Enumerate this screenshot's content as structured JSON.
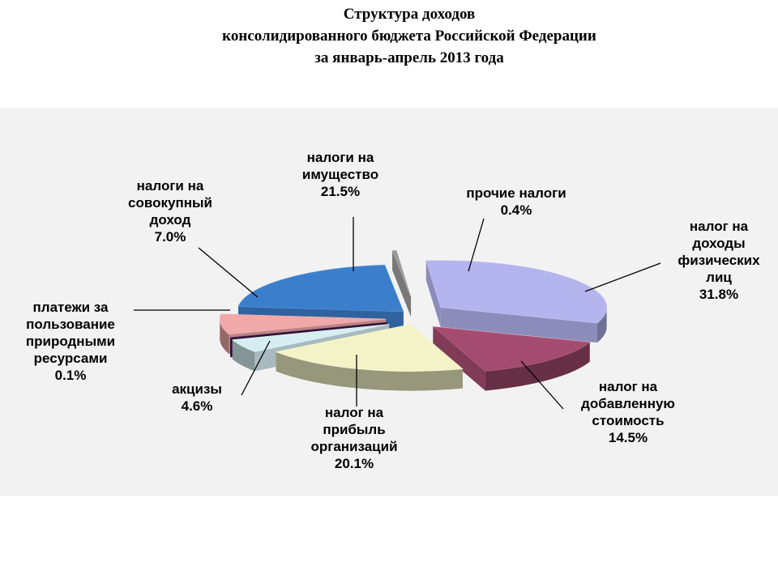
{
  "title": {
    "line1": "Структура доходов",
    "line2": "консолидированного бюджета Российской Федерации",
    "line3": "за январь-апрель 2013 года"
  },
  "chart_data": {
    "type": "pie",
    "title": "Структура доходов консолидированного бюджета Российской Федерации за январь-апрель 2013 года",
    "unit": "%",
    "three_d": true,
    "exploded": true,
    "slices": [
      {
        "name": "налог на доходы физических лиц",
        "value": 31.8,
        "label": "31.8%",
        "color": "#b4b4ee",
        "label_lines": [
          "налог на",
          "доходы",
          "физических",
          "лиц"
        ]
      },
      {
        "name": "налог на добавленную стоимость",
        "value": 14.5,
        "label": "14.5%",
        "color": "#a44c70",
        "label_lines": [
          "налог на",
          "добавленную",
          "стоимость"
        ]
      },
      {
        "name": "налог на прибыль организаций",
        "value": 20.1,
        "label": "20.1%",
        "color": "#f4f3c8",
        "label_lines": [
          "налог на",
          "прибыль",
          "организаций"
        ]
      },
      {
        "name": "акцизы",
        "value": 4.6,
        "label": "4.6%",
        "color": "#d6eef2",
        "label_lines": [
          "акцизы"
        ]
      },
      {
        "name": "платежи за пользование природными ресурсами",
        "value": 0.1,
        "label": "0.1%",
        "color": "#3a1040",
        "label_lines": [
          "платежи за",
          "пользование",
          "природными",
          "ресурсами"
        ]
      },
      {
        "name": "налоги на совокупный доход",
        "value": 7.0,
        "label": "7.0%",
        "color": "#f0a8a8",
        "label_lines": [
          "налоги на",
          "совокупный",
          "доход"
        ]
      },
      {
        "name": "налоги на имущество",
        "value": 21.5,
        "label": "21.5%",
        "color": "#3b7fcc",
        "label_lines": [
          "налоги на",
          "имущество"
        ]
      },
      {
        "name": "прочие налоги",
        "value": 0.4,
        "label": "0.4%",
        "color": "#9a9a9a",
        "label_lines": [
          "прочие налоги"
        ]
      }
    ]
  }
}
